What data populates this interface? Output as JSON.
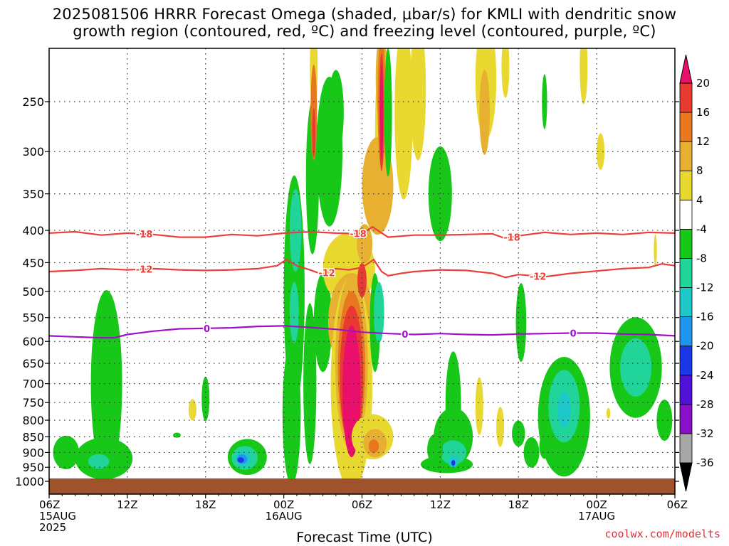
{
  "title_line1": "2025081506 HRRR Forecast Omega (shaded, μbar/s) for KMLI with dendritic snow",
  "title_line2": "growth region (contoured, red, ºC) and freezing level (contoured, purple, ºC)",
  "xlabel": "Forecast Time (UTC)",
  "credit": "coolwx.com/modelts",
  "chart_data": {
    "type": "heatmap",
    "title": "2025081506 HRRR Forecast Omega (shaded, μbar/s) for KMLI with dendritic snow growth region (contoured, red, ºC) and freezing level (contoured, purple, ºC)",
    "xlabel": "Forecast Time (UTC)",
    "ylabel": "",
    "x_unit": "hours since 2025-08-15 06Z",
    "xlim": [
      0,
      48
    ],
    "ylim": [
      200,
      1000
    ],
    "y_scale": "log (pressure)",
    "y_ticks": [
      250,
      300,
      350,
      400,
      450,
      500,
      550,
      600,
      650,
      700,
      750,
      800,
      850,
      900,
      950,
      1000
    ],
    "x_ticks": [
      {
        "x": 0,
        "lines": [
          "06Z",
          "15AUG",
          "2025"
        ]
      },
      {
        "x": 6,
        "lines": [
          "12Z"
        ]
      },
      {
        "x": 12,
        "lines": [
          "18Z"
        ]
      },
      {
        "x": 18,
        "lines": [
          "00Z",
          "16AUG"
        ]
      },
      {
        "x": 24,
        "lines": [
          "06Z"
        ]
      },
      {
        "x": 30,
        "lines": [
          "12Z"
        ]
      },
      {
        "x": 36,
        "lines": [
          "18Z"
        ]
      },
      {
        "x": 42,
        "lines": [
          "00Z",
          "17AUG"
        ]
      },
      {
        "x": 48,
        "lines": [
          "06Z"
        ]
      }
    ],
    "grid": true,
    "colorbar": {
      "levels": [
        -36,
        -32,
        -28,
        -24,
        -20,
        -16,
        -12,
        -8,
        -4,
        4,
        8,
        12,
        16,
        20
      ],
      "colors": [
        "#000000",
        "#a8a8a8",
        "#8a10c8",
        "#5010d8",
        "#1a38e8",
        "#1e96f0",
        "#1ec8c8",
        "#20d49a",
        "#18c818",
        "#ffffff",
        "#e8d830",
        "#e8b030",
        "#e87820",
        "#e83a30",
        "#e8106a"
      ]
    },
    "ground_color": "#a0522d",
    "omega_features": [
      {
        "xc": 1.3,
        "pc": 900,
        "xw": 1.0,
        "pw": 55,
        "color": "#18c818"
      },
      {
        "xc": 4.4,
        "pc": 700,
        "xw": 1.2,
        "pw": 230,
        "color": "#18c818"
      },
      {
        "xc": 4.2,
        "pc": 920,
        "xw": 2.2,
        "pw": 70,
        "color": "#18c818"
      },
      {
        "xc": 3.8,
        "pc": 930,
        "xw": 0.8,
        "pw": 25,
        "color": "#20d49a"
      },
      {
        "xc": 9.8,
        "pc": 845,
        "xw": 0.3,
        "pw": 8,
        "color": "#18c818"
      },
      {
        "xc": 12.0,
        "pc": 740,
        "xw": 0.3,
        "pw": 60,
        "color": "#18c818"
      },
      {
        "xc": 11.0,
        "pc": 770,
        "xw": 0.3,
        "pw": 30,
        "color": "#e8d830"
      },
      {
        "xc": 15.2,
        "pc": 915,
        "xw": 1.5,
        "pw": 60,
        "color": "#18c818"
      },
      {
        "xc": 15.0,
        "pc": 918,
        "xw": 1.0,
        "pw": 40,
        "color": "#20d49a"
      },
      {
        "xc": 14.9,
        "pc": 920,
        "xw": 0.6,
        "pw": 25,
        "color": "#1ec8c8"
      },
      {
        "xc": 14.8,
        "pc": 922,
        "xw": 0.4,
        "pw": 16,
        "color": "#1e96f0"
      },
      {
        "xc": 14.7,
        "pc": 925,
        "xw": 0.25,
        "pw": 9,
        "color": "#1a38e8"
      },
      {
        "xc": 18.8,
        "pc": 500,
        "xw": 0.8,
        "pw": 200,
        "color": "#18c818"
      },
      {
        "xc": 18.6,
        "pc": 780,
        "xw": 0.7,
        "pw": 200,
        "color": "#18c818"
      },
      {
        "xc": 18.9,
        "pc": 400,
        "xw": 0.45,
        "pw": 60,
        "color": "#20d49a"
      },
      {
        "xc": 18.8,
        "pc": 540,
        "xw": 0.35,
        "pw": 60,
        "color": "#20d49a"
      },
      {
        "xc": 20.2,
        "pc": 330,
        "xw": 0.5,
        "pw": 90,
        "color": "#18c818"
      },
      {
        "xc": 20.0,
        "pc": 700,
        "xw": 0.5,
        "pw": 200,
        "color": "#18c818"
      },
      {
        "xc": 22.0,
        "pc": 260,
        "xw": 0.6,
        "pw": 40,
        "color": "#18c818"
      },
      {
        "xc": 21.5,
        "pc": 300,
        "xw": 1.0,
        "pw": 80,
        "color": "#18c818"
      },
      {
        "xc": 20.3,
        "pc": 220,
        "xw": 0.3,
        "pw": 35,
        "color": "#e8d830"
      },
      {
        "xc": 20.3,
        "pc": 260,
        "xw": 0.25,
        "pw": 45,
        "color": "#e87820"
      },
      {
        "xc": 20.3,
        "pc": 280,
        "xw": 0.12,
        "pw": 25,
        "color": "#e83a30"
      },
      {
        "xc": 21.0,
        "pc": 560,
        "xw": 0.7,
        "pw": 100,
        "color": "#18c818"
      },
      {
        "xc": 23.0,
        "pc": 460,
        "xw": 2.0,
        "pw": 60,
        "color": "#e8d830"
      },
      {
        "xc": 23.2,
        "pc": 560,
        "xw": 1.8,
        "pw": 100,
        "color": "#e8b030"
      },
      {
        "xc": 23.2,
        "pc": 700,
        "xw": 1.6,
        "pw": 260,
        "color": "#e8d830"
      },
      {
        "xc": 23.2,
        "pc": 650,
        "xw": 1.25,
        "pw": 200,
        "color": "#e8b030"
      },
      {
        "xc": 23.2,
        "pc": 660,
        "xw": 1.05,
        "pw": 180,
        "color": "#e87820"
      },
      {
        "xc": 23.2,
        "pc": 680,
        "xw": 0.9,
        "pw": 170,
        "color": "#e83a30"
      },
      {
        "xc": 23.2,
        "pc": 720,
        "xw": 0.7,
        "pw": 170,
        "color": "#e8106a"
      },
      {
        "xc": 25.6,
        "pc": 280,
        "xw": 0.6,
        "pw": 90,
        "color": "#e8d830"
      },
      {
        "xc": 25.2,
        "pc": 340,
        "xw": 1.2,
        "pw": 60,
        "color": "#e8b030"
      },
      {
        "xc": 25.5,
        "pc": 230,
        "xw": 0.45,
        "pw": 40,
        "color": "#e8b030"
      },
      {
        "xc": 25.5,
        "pc": 250,
        "xw": 0.3,
        "pw": 60,
        "color": "#e87820"
      },
      {
        "xc": 25.5,
        "pc": 260,
        "xw": 0.18,
        "pw": 55,
        "color": "#e83a30"
      },
      {
        "xc": 25.5,
        "pc": 260,
        "xw": 0.12,
        "pw": 45,
        "color": "#e8106a"
      },
      {
        "xc": 26.0,
        "pc": 260,
        "xw": 0.3,
        "pw": 60,
        "color": "#18c818"
      },
      {
        "xc": 25.0,
        "pc": 560,
        "xw": 0.4,
        "pw": 100,
        "color": "#18c818"
      },
      {
        "xc": 25.3,
        "pc": 540,
        "xw": 0.4,
        "pw": 60,
        "color": "#20d49a"
      },
      {
        "xc": 24.2,
        "pc": 420,
        "xw": 0.6,
        "pw": 30,
        "color": "#e8b030"
      },
      {
        "xc": 24.0,
        "pc": 480,
        "xw": 0.35,
        "pw": 30,
        "color": "#e83a30"
      },
      {
        "xc": 24.8,
        "pc": 850,
        "xw": 1.6,
        "pw": 70,
        "color": "#e8d830"
      },
      {
        "xc": 25.0,
        "pc": 870,
        "xw": 0.9,
        "pw": 45,
        "color": "#e8b030"
      },
      {
        "xc": 24.9,
        "pc": 880,
        "xw": 0.4,
        "pw": 22,
        "color": "#e87820"
      },
      {
        "xc": 27.2,
        "pc": 260,
        "xw": 0.7,
        "pw": 80,
        "color": "#e8d830"
      },
      {
        "xc": 28.3,
        "pc": 240,
        "xw": 0.6,
        "pw": 60,
        "color": "#e8d830"
      },
      {
        "xc": 30.0,
        "pc": 350,
        "xw": 0.9,
        "pw": 60,
        "color": "#18c818"
      },
      {
        "xc": 33.5,
        "pc": 230,
        "xw": 0.8,
        "pw": 50,
        "color": "#e8d830"
      },
      {
        "xc": 33.4,
        "pc": 260,
        "xw": 0.4,
        "pw": 40,
        "color": "#e8b030"
      },
      {
        "xc": 35.0,
        "pc": 220,
        "xw": 0.3,
        "pw": 25,
        "color": "#e8d830"
      },
      {
        "xc": 33.0,
        "pc": 760,
        "xw": 0.3,
        "pw": 80,
        "color": "#e8d830"
      },
      {
        "xc": 34.6,
        "pc": 820,
        "xw": 0.3,
        "pw": 60,
        "color": "#e8d830"
      },
      {
        "xc": 31.0,
        "pc": 850,
        "xw": 1.5,
        "pw": 90,
        "color": "#18c818"
      },
      {
        "xc": 31.0,
        "pc": 760,
        "xw": 0.6,
        "pw": 150,
        "color": "#18c818"
      },
      {
        "xc": 30.5,
        "pc": 940,
        "xw": 2.0,
        "pw": 30,
        "color": "#18c818"
      },
      {
        "xc": 31.0,
        "pc": 900,
        "xw": 1.0,
        "pw": 40,
        "color": "#20d49a"
      },
      {
        "xc": 31.0,
        "pc": 930,
        "xw": 0.4,
        "pw": 20,
        "color": "#1ec8c8"
      },
      {
        "xc": 31.0,
        "pc": 935,
        "xw": 0.15,
        "pw": 10,
        "color": "#1a38e8"
      },
      {
        "xc": 29.6,
        "pc": 890,
        "xw": 0.6,
        "pw": 50,
        "color": "#18c818"
      },
      {
        "xc": 36.0,
        "pc": 840,
        "xw": 0.5,
        "pw": 40,
        "color": "#18c818"
      },
      {
        "xc": 36.2,
        "pc": 560,
        "xw": 0.4,
        "pw": 80,
        "color": "#18c818"
      },
      {
        "xc": 37.0,
        "pc": 900,
        "xw": 0.6,
        "pw": 50,
        "color": "#18c818"
      },
      {
        "xc": 38.0,
        "pc": 880,
        "xw": 0.4,
        "pw": 40,
        "color": "#18c818"
      },
      {
        "xc": 39.5,
        "pc": 790,
        "xw": 2.0,
        "pw": 170,
        "color": "#18c818"
      },
      {
        "xc": 39.5,
        "pc": 760,
        "xw": 1.2,
        "pw": 100,
        "color": "#20d49a"
      },
      {
        "xc": 39.5,
        "pc": 770,
        "xw": 0.5,
        "pw": 50,
        "color": "#1ec8c8"
      },
      {
        "xc": 38.0,
        "pc": 250,
        "xw": 0.2,
        "pw": 25,
        "color": "#18c818"
      },
      {
        "xc": 42.3,
        "pc": 300,
        "xw": 0.3,
        "pw": 20,
        "color": "#e8d830"
      },
      {
        "xc": 41.0,
        "pc": 220,
        "xw": 0.3,
        "pw": 30,
        "color": "#e8d830"
      },
      {
        "xc": 46.5,
        "pc": 430,
        "xw": 0.12,
        "pw": 25,
        "color": "#e8d830"
      },
      {
        "xc": 45.0,
        "pc": 660,
        "xw": 2.0,
        "pw": 120,
        "color": "#18c818"
      },
      {
        "xc": 45.0,
        "pc": 660,
        "xw": 1.2,
        "pw": 70,
        "color": "#20d49a"
      },
      {
        "xc": 47.2,
        "pc": 800,
        "xw": 0.6,
        "pw": 60,
        "color": "#18c818"
      },
      {
        "xc": 42.9,
        "pc": 780,
        "xw": 0.15,
        "pw": 15,
        "color": "#e8d830"
      }
    ],
    "contours": [
      {
        "label": "-18",
        "color": "#e8403a",
        "label_x": [
          7.3,
          23.7,
          35.5
        ],
        "points": [
          [
            0,
            404
          ],
          [
            2,
            402
          ],
          [
            4,
            407
          ],
          [
            6,
            404
          ],
          [
            8,
            406
          ],
          [
            10,
            410
          ],
          [
            12,
            410
          ],
          [
            14,
            406
          ],
          [
            16,
            408
          ],
          [
            18,
            404
          ],
          [
            20,
            402
          ],
          [
            22,
            404
          ],
          [
            24,
            405
          ],
          [
            24.8,
            395
          ],
          [
            26,
            410
          ],
          [
            28,
            407
          ],
          [
            30,
            407
          ],
          [
            32,
            406
          ],
          [
            34,
            405
          ],
          [
            35,
            412
          ],
          [
            36,
            408
          ],
          [
            38,
            403
          ],
          [
            40,
            406
          ],
          [
            42,
            404
          ],
          [
            44,
            406
          ],
          [
            46,
            403
          ],
          [
            48,
            404
          ]
        ]
      },
      {
        "label": "-12",
        "color": "#e8403a",
        "label_x": [
          7.3,
          21.3,
          37.5
        ],
        "points": [
          [
            0,
            465
          ],
          [
            2,
            463
          ],
          [
            4,
            460
          ],
          [
            6,
            462
          ],
          [
            8,
            460
          ],
          [
            10,
            462
          ],
          [
            12,
            463
          ],
          [
            14,
            462
          ],
          [
            16,
            460
          ],
          [
            17.5,
            455
          ],
          [
            18.2,
            445
          ],
          [
            19,
            455
          ],
          [
            20,
            462
          ],
          [
            21,
            470
          ],
          [
            22,
            460
          ],
          [
            23,
            462
          ],
          [
            24,
            458
          ],
          [
            24.9,
            445
          ],
          [
            25.5,
            465
          ],
          [
            26,
            472
          ],
          [
            27,
            468
          ],
          [
            28,
            465
          ],
          [
            30,
            462
          ],
          [
            32,
            463
          ],
          [
            34,
            468
          ],
          [
            35,
            475
          ],
          [
            36,
            470
          ],
          [
            38,
            474
          ],
          [
            40,
            468
          ],
          [
            42,
            464
          ],
          [
            44,
            460
          ],
          [
            46,
            458
          ],
          [
            47,
            452
          ],
          [
            48,
            455
          ]
        ]
      },
      {
        "label": "0",
        "color": "#a010c8",
        "label_x": [
          12.1,
          27.3,
          40.2
        ],
        "points": [
          [
            0,
            588
          ],
          [
            2,
            590
          ],
          [
            4,
            592
          ],
          [
            5,
            592
          ],
          [
            6,
            585
          ],
          [
            8,
            578
          ],
          [
            10,
            573
          ],
          [
            12,
            572
          ],
          [
            14,
            571
          ],
          [
            16,
            568
          ],
          [
            18,
            567
          ],
          [
            20,
            570
          ],
          [
            22,
            574
          ],
          [
            24,
            580
          ],
          [
            26,
            583
          ],
          [
            28,
            585
          ],
          [
            30,
            583
          ],
          [
            32,
            585
          ],
          [
            34,
            586
          ],
          [
            36,
            584
          ],
          [
            38,
            583
          ],
          [
            40,
            582
          ],
          [
            42,
            582
          ],
          [
            44,
            584
          ],
          [
            46,
            585
          ],
          [
            48,
            588
          ]
        ]
      }
    ]
  }
}
